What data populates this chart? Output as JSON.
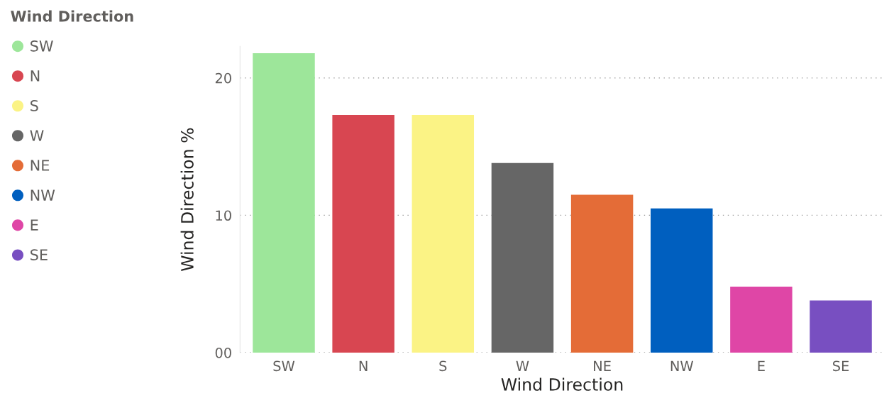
{
  "chart_data": {
    "type": "bar",
    "xlabel": "Wind Direction",
    "ylabel": "Wind Direction %",
    "legend_title": "Wind Direction",
    "categories": [
      "SW",
      "N",
      "S",
      "W",
      "NE",
      "NW",
      "E",
      "SE"
    ],
    "stacked": true,
    "series": [
      {
        "name": "SW",
        "color": "#9de69a",
        "values": [
          21.8,
          null,
          null,
          null,
          null,
          null,
          null,
          null
        ]
      },
      {
        "name": "N",
        "color": "#d84651",
        "values": [
          null,
          17.3,
          null,
          null,
          null,
          null,
          null,
          null
        ]
      },
      {
        "name": "S",
        "color": "#fbf385",
        "values": [
          null,
          null,
          17.3,
          null,
          null,
          null,
          null,
          null
        ]
      },
      {
        "name": "W",
        "color": "#666666",
        "values": [
          null,
          null,
          null,
          13.8,
          null,
          null,
          null,
          null
        ]
      },
      {
        "name": "NE",
        "color": "#e46c37",
        "values": [
          null,
          null,
          null,
          null,
          11.5,
          null,
          null,
          null
        ]
      },
      {
        "name": "NW",
        "color": "#005fbf",
        "values": [
          null,
          null,
          null,
          null,
          null,
          10.5,
          null,
          null
        ]
      },
      {
        "name": "E",
        "color": "#df46a6",
        "values": [
          null,
          null,
          null,
          null,
          null,
          null,
          4.8,
          null
        ]
      },
      {
        "name": "SE",
        "color": "#784fc1",
        "values": [
          null,
          null,
          null,
          null,
          null,
          null,
          null,
          3.8
        ]
      }
    ],
    "ylim": [
      0,
      22.3
    ],
    "yticks": [
      {
        "value": 0,
        "label": "00"
      },
      10,
      20
    ],
    "grid": "y",
    "legend": "left",
    "marker": "circle"
  }
}
